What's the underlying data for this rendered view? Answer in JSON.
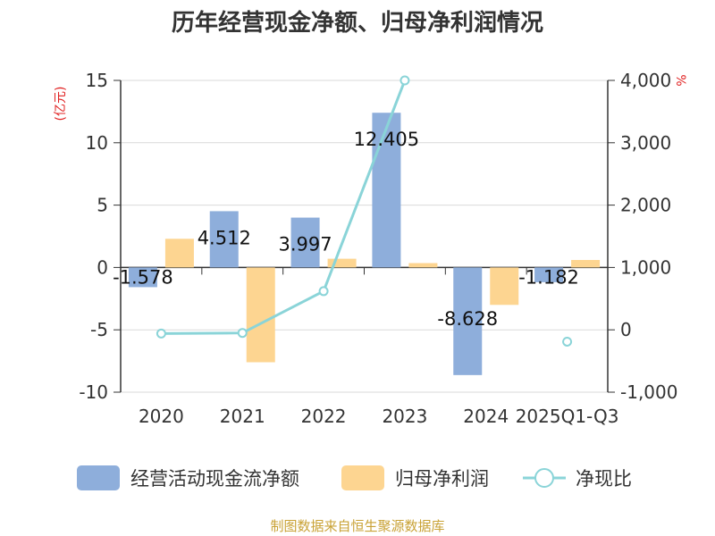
{
  "chart_data": {
    "type": "bar",
    "title": "历年经营现金净额、归母净利润情况",
    "categories": [
      "2020",
      "2021",
      "2022",
      "2023",
      "2024",
      "2025Q1-Q3"
    ],
    "series": [
      {
        "name": "经营活动现金流净额",
        "type": "bar",
        "axis": "left",
        "color": "#8EAEDB",
        "values": [
          -1.578,
          4.512,
          3.997,
          12.405,
          -8.628,
          -1.182
        ],
        "labels": [
          "-1.578",
          "4.512",
          "3.997",
          "12.405",
          "-8.628",
          "-1.182"
        ]
      },
      {
        "name": "归母净利润",
        "type": "bar",
        "axis": "left",
        "color": "#FDD591",
        "values": [
          2.3,
          -7.6,
          0.7,
          0.35,
          -3.0,
          0.6
        ]
      },
      {
        "name": "净现比",
        "type": "line",
        "axis": "right",
        "color": "#8AD4D8",
        "values": [
          -60,
          -50,
          620,
          4000,
          null,
          -190
        ]
      }
    ],
    "y_left": {
      "unit": "(亿元)",
      "min": -10,
      "max": 15,
      "ticks": [
        "15",
        "10",
        "5",
        "0",
        "-5",
        "-10"
      ],
      "tick_values": [
        15,
        10,
        5,
        0,
        -5,
        -10
      ]
    },
    "y_right": {
      "unit": "%",
      "min": -1000,
      "max": 4000,
      "ticks": [
        "4,000",
        "3,000",
        "2,000",
        "1,000",
        "0",
        "-1,000"
      ],
      "tick_values": [
        4000,
        3000,
        2000,
        1000,
        0,
        -1000
      ]
    },
    "legend_position": "bottom",
    "unit_color": "#E02020",
    "grid": true
  },
  "source": {
    "text": "制图数据来自恒生聚源数据库",
    "color": "#C9A236"
  }
}
